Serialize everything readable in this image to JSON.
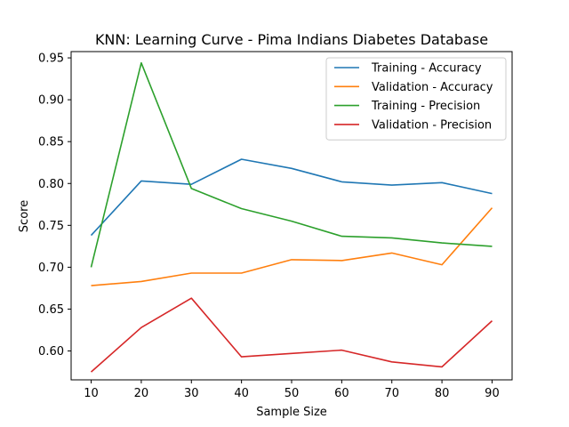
{
  "chart_data": {
    "type": "line",
    "title": "KNN: Learning Curve - Pima Indians Diabetes Database",
    "xlabel": "Sample Size",
    "ylabel": "Score",
    "x": [
      10,
      20,
      30,
      40,
      50,
      60,
      70,
      80,
      90
    ],
    "xlim": [
      6,
      94
    ],
    "ylim": [
      0.5655,
      0.9575
    ],
    "xticks": [
      "10",
      "20",
      "30",
      "40",
      "50",
      "60",
      "70",
      "80",
      "90"
    ],
    "yticks": [
      "0.60",
      "0.65",
      "0.70",
      "0.75",
      "0.80",
      "0.85",
      "0.90",
      "0.95"
    ],
    "grid": false,
    "legend_position": "top-right",
    "series": [
      {
        "name": "Training - Accuracy",
        "color": "#1f77b4",
        "values": [
          0.738,
          0.803,
          0.799,
          0.829,
          0.818,
          0.802,
          0.798,
          0.801,
          0.788
        ]
      },
      {
        "name": "Validation - Accuracy",
        "color": "#ff7f0e",
        "values": [
          0.678,
          0.683,
          0.693,
          0.693,
          0.709,
          0.708,
          0.717,
          0.703,
          0.771
        ]
      },
      {
        "name": "Training - Precision",
        "color": "#2ca02c",
        "values": [
          0.7,
          0.944,
          0.794,
          0.77,
          0.755,
          0.737,
          0.735,
          0.729,
          0.725
        ]
      },
      {
        "name": "Validation - Precision",
        "color": "#d62728",
        "values": [
          0.575,
          0.628,
          0.663,
          0.593,
          0.597,
          0.601,
          0.587,
          0.581,
          0.636
        ]
      }
    ]
  }
}
